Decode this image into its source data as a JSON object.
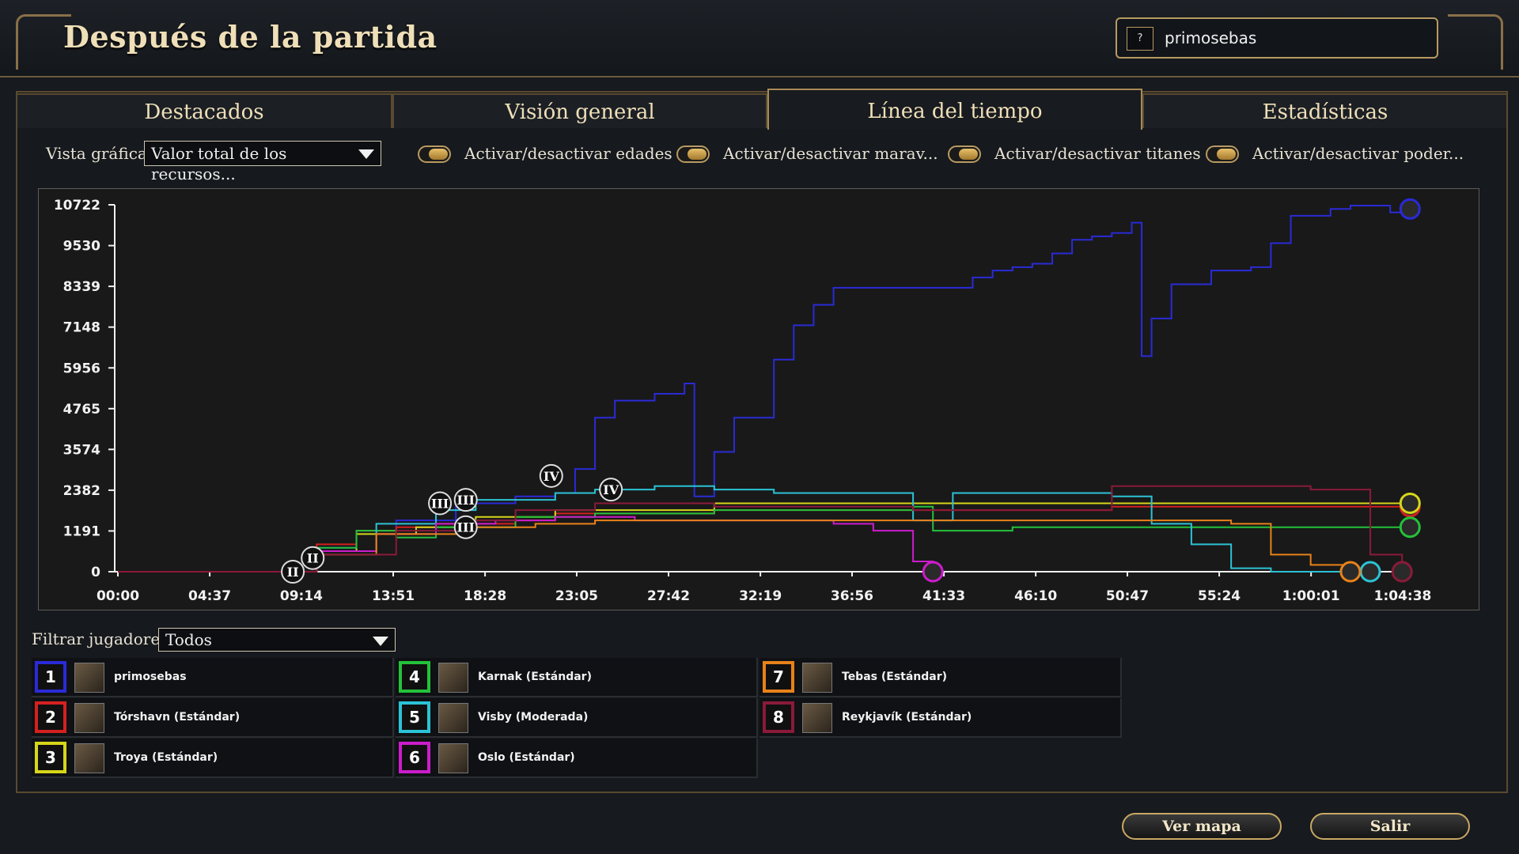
{
  "header": {
    "title": "Después de la partida",
    "help_label": "?",
    "player_name": "primosebas"
  },
  "tabs": [
    {
      "label": "Destacados",
      "active": false
    },
    {
      "label": "Visión general",
      "active": false
    },
    {
      "label": "Línea del tiempo",
      "active": true
    },
    {
      "label": "Estadísticas",
      "active": false
    }
  ],
  "controls": {
    "view_label": "Vista gráfica:",
    "view_value": "Valor total de los recursos...",
    "toggles": [
      "Activar/desactivar edades",
      "Activar/desactivar marav...",
      "Activar/desactivar titanes",
      "Activar/desactivar poder..."
    ]
  },
  "filter": {
    "label": "Filtrar jugadores:",
    "value": "Todos"
  },
  "players": [
    {
      "num": "1",
      "name": "primosebas",
      "color": "#2a2ad8"
    },
    {
      "num": "2",
      "name": "Tórshavn (Estándar)",
      "color": "#d42020"
    },
    {
      "num": "3",
      "name": "Troya (Estándar)",
      "color": "#d6d61a"
    },
    {
      "num": "4",
      "name": "Karnak (Estándar)",
      "color": "#23c23a"
    },
    {
      "num": "5",
      "name": "Visby (Moderada)",
      "color": "#2bc3d6"
    },
    {
      "num": "6",
      "name": "Oslo (Estándar)",
      "color": "#cc1ccc"
    },
    {
      "num": "7",
      "name": "Tebas (Estándar)",
      "color": "#e8821a"
    },
    {
      "num": "8",
      "name": "Reykjavík (Estándar)",
      "color": "#8a1a3a"
    }
  ],
  "buttons": {
    "map": "Ver mapa",
    "exit": "Salir"
  },
  "chart_data": {
    "type": "line",
    "title": "",
    "ylim": [
      0,
      10722
    ],
    "yticks": [
      "0",
      "1191",
      "2382",
      "3574",
      "4765",
      "5956",
      "7148",
      "8339",
      "9530",
      "10722"
    ],
    "xticks": [
      "00:00",
      "04:37",
      "09:14",
      "13:51",
      "18:28",
      "23:05",
      "27:42",
      "32:19",
      "36:56",
      "41:33",
      "46:10",
      "50:47",
      "55:24",
      "1:00:01",
      "1:04:38"
    ],
    "x_unit_minutes": [
      0,
      4.62,
      9.23,
      13.85,
      18.47,
      23.08,
      27.7,
      32.32,
      36.93,
      41.55,
      46.17,
      50.78,
      55.4,
      60.02,
      64.63
    ],
    "series": [
      {
        "color": "#2a2ad8",
        "x": [
          0,
          9,
          10,
          12,
          14,
          17,
          20,
          22,
          23,
          24,
          25,
          27,
          28.5,
          29,
          30,
          31,
          33,
          34,
          35,
          36,
          38,
          41,
          43,
          44,
          45,
          46,
          47,
          48,
          49,
          50,
          51,
          51.5,
          52,
          53,
          55,
          57,
          58,
          59,
          61,
          62,
          64,
          65
        ],
        "y": [
          0,
          0,
          700,
          1200,
          1500,
          2000,
          2200,
          2300,
          3000,
          4500,
          5000,
          5200,
          5500,
          2200,
          3500,
          4500,
          6200,
          7200,
          7800,
          8300,
          8300,
          8300,
          8600,
          8800,
          8900,
          9000,
          9300,
          9700,
          9800,
          9900,
          10200,
          6300,
          7400,
          8400,
          8800,
          8900,
          9600,
          10400,
          10600,
          10700,
          10500,
          10600
        ]
      },
      {
        "color": "#d42020",
        "x": [
          0,
          9,
          10,
          12,
          14,
          16,
          20,
          22,
          30,
          40,
          50,
          56,
          60,
          63,
          65
        ],
        "y": [
          0,
          0,
          800,
          1200,
          1300,
          1400,
          1500,
          1700,
          1800,
          1800,
          1900,
          1900,
          1900,
          1900,
          1900
        ]
      },
      {
        "color": "#d6d61a",
        "x": [
          0,
          9,
          10,
          12,
          15,
          18,
          22,
          30,
          40,
          50,
          56,
          60,
          65
        ],
        "y": [
          0,
          0,
          600,
          1100,
          1300,
          1600,
          1800,
          2000,
          2000,
          2000,
          2000,
          2000,
          2000
        ]
      },
      {
        "color": "#23c23a",
        "x": [
          0,
          9,
          10,
          12,
          14,
          16,
          20,
          24,
          30,
          40,
          41,
          45,
          50,
          55,
          60,
          65
        ],
        "y": [
          0,
          0,
          700,
          1200,
          1000,
          1300,
          1600,
          1700,
          1800,
          1900,
          1200,
          1300,
          1300,
          1300,
          1300,
          1300
        ]
      },
      {
        "color": "#2bc3d6",
        "x": [
          0,
          9,
          10,
          13,
          16,
          18,
          22,
          24,
          27,
          30,
          33,
          38,
          40,
          42,
          46,
          50,
          52,
          54,
          56,
          58,
          60,
          63
        ],
        "y": [
          0,
          0,
          600,
          1400,
          1800,
          2100,
          2300,
          2400,
          2500,
          2400,
          2300,
          2300,
          1500,
          2300,
          2300,
          2200,
          1400,
          800,
          100,
          0,
          0,
          0
        ]
      },
      {
        "color": "#cc1ccc",
        "x": [
          0,
          9,
          10,
          13,
          16,
          19,
          22,
          26,
          30,
          36,
          38,
          40,
          41
        ],
        "y": [
          0,
          0,
          600,
          1100,
          1400,
          1500,
          1600,
          1500,
          1500,
          1400,
          1200,
          300,
          0
        ]
      },
      {
        "color": "#e8821a",
        "x": [
          0,
          9,
          10,
          13,
          17,
          21,
          24,
          30,
          40,
          50,
          56,
          58,
          60,
          62
        ],
        "y": [
          0,
          0,
          500,
          1100,
          1300,
          1400,
          1500,
          1500,
          1500,
          1500,
          1400,
          500,
          200,
          0
        ]
      },
      {
        "color": "#8a1a3a",
        "x": [
          0,
          9,
          10,
          14,
          18,
          20,
          24,
          30,
          40,
          49,
          50,
          55,
          60,
          62,
          63,
          64.6
        ],
        "y": [
          0,
          0,
          500,
          1200,
          1500,
          1800,
          2000,
          1900,
          1800,
          1800,
          2500,
          2500,
          2400,
          2400,
          500,
          0
        ]
      }
    ],
    "age_markers": [
      {
        "label": "II",
        "x": 8.8,
        "y": 0
      },
      {
        "label": "II",
        "x": 9.8,
        "y": 400
      },
      {
        "label": "III",
        "x": 16.2,
        "y": 2000
      },
      {
        "label": "III",
        "x": 17.5,
        "y": 2100
      },
      {
        "label": "III",
        "x": 17.5,
        "y": 1300
      },
      {
        "label": "IV",
        "x": 21.8,
        "y": 2800
      },
      {
        "label": "IV",
        "x": 24.8,
        "y": 2400
      }
    ]
  }
}
